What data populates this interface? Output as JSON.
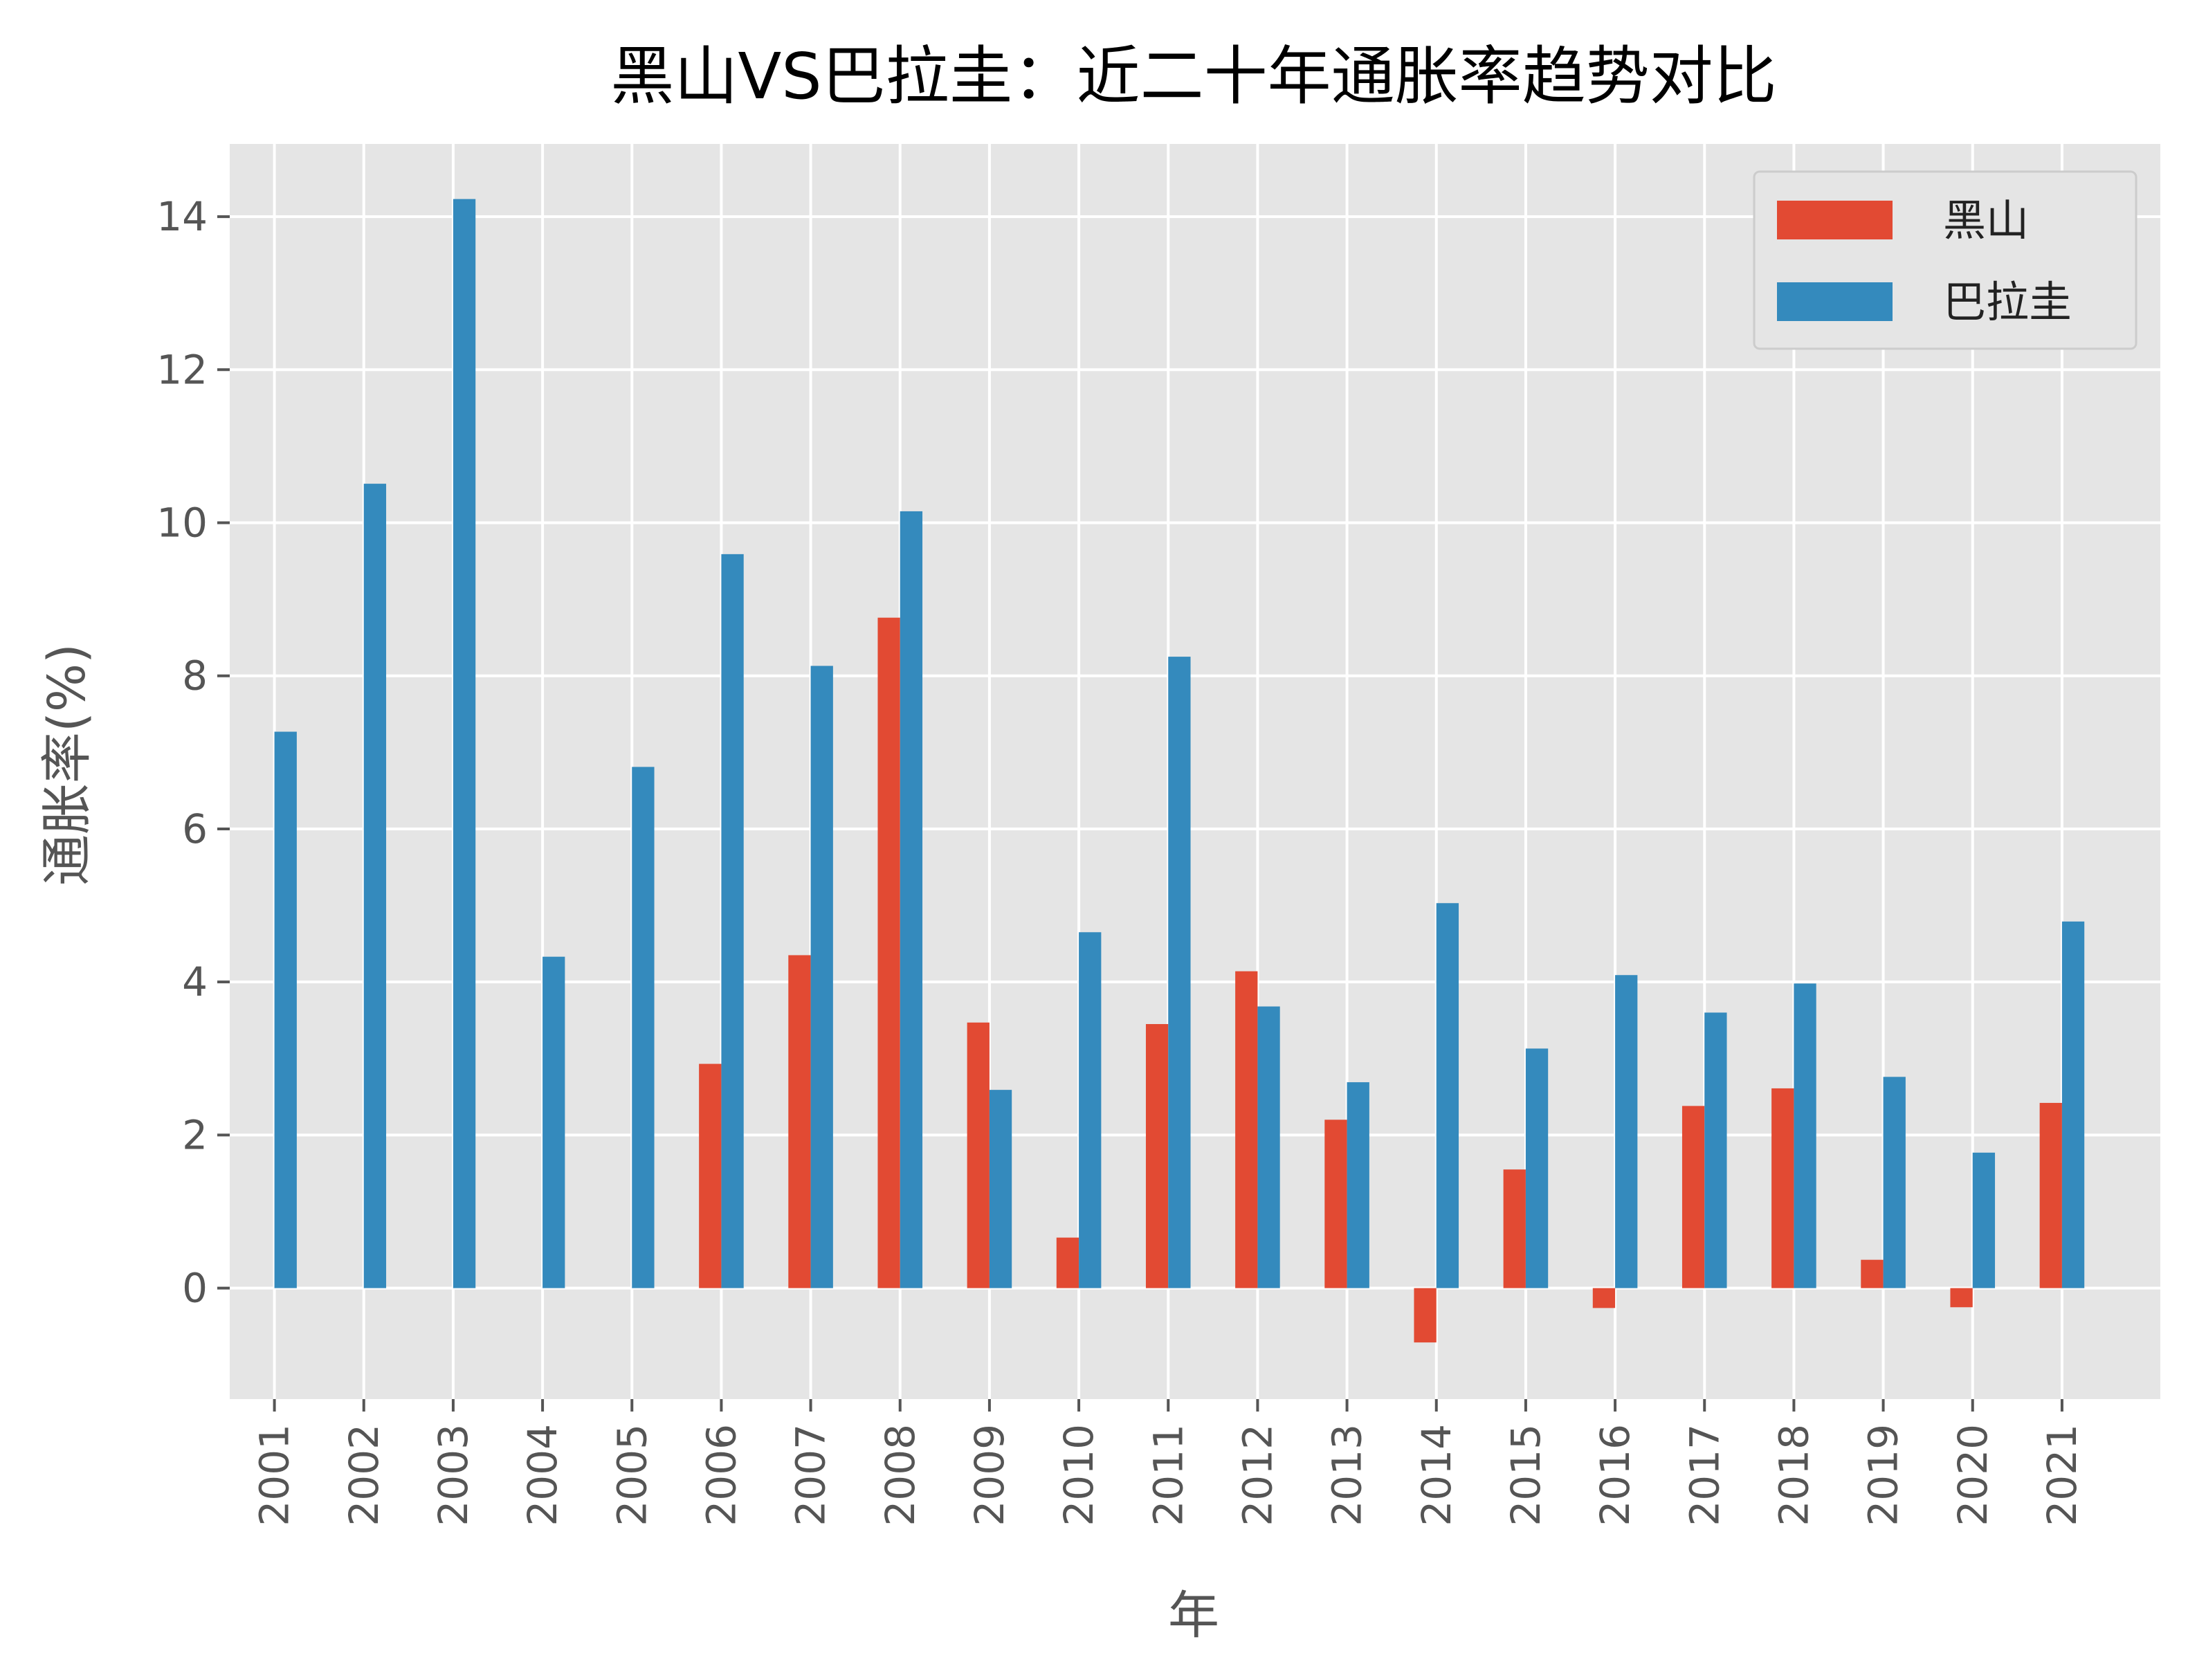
{
  "chart_data": {
    "type": "bar",
    "title": "黑山VS巴拉圭：近二十年通胀率趋势对比",
    "xlabel": "年",
    "ylabel": "通胀率(%)",
    "categories": [
      "2001",
      "2002",
      "2003",
      "2004",
      "2005",
      "2006",
      "2007",
      "2008",
      "2009",
      "2010",
      "2011",
      "2012",
      "2013",
      "2014",
      "2015",
      "2016",
      "2017",
      "2018",
      "2019",
      "2020",
      "2021"
    ],
    "series": [
      {
        "name": "黑山",
        "color": "#E24A33",
        "values": [
          0,
          0,
          0,
          0,
          0,
          2.93,
          4.35,
          8.76,
          3.47,
          0.66,
          3.45,
          4.14,
          2.2,
          -0.71,
          1.55,
          -0.26,
          2.38,
          2.61,
          0.37,
          -0.25,
          2.42
        ]
      },
      {
        "name": "巴拉圭",
        "color": "#348ABD",
        "values": [
          7.27,
          10.51,
          14.23,
          4.33,
          6.81,
          9.59,
          8.13,
          10.15,
          2.59,
          4.65,
          8.25,
          3.68,
          2.69,
          5.03,
          3.13,
          4.09,
          3.6,
          3.98,
          2.76,
          1.77,
          4.79
        ]
      }
    ],
    "yticks": [
      0,
      2,
      4,
      6,
      8,
      10,
      12,
      14
    ],
    "ylim": [
      -1.45,
      14.95
    ],
    "grid": true,
    "legend_position": "upper-right",
    "style": {
      "background": "#E5E5E5",
      "grid_color": "#FFFFFF"
    }
  }
}
